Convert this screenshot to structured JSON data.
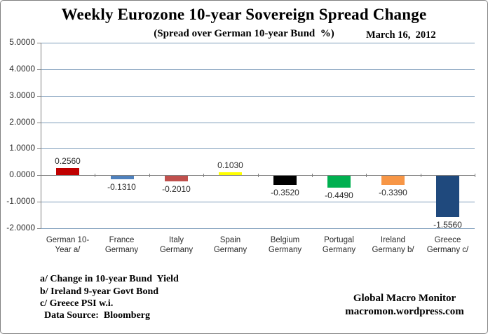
{
  "chart_data": {
    "type": "bar",
    "title": "Weekly Eurozone 10-year Sovereign Spread Change",
    "subtitle": "(Spread over German 10-year Bund  %)",
    "date_annotation": "March 16,  2012",
    "categories": [
      "German 10-\nYear a/",
      "France\nGermany",
      "Italy\nGermany",
      "Spain\nGermany",
      "Belgium\nGermany",
      "Portugal\nGermany",
      "Ireland\nGermany b/",
      "Greece\nGermany c/"
    ],
    "values": [
      0.256,
      -0.131,
      -0.201,
      0.103,
      -0.352,
      -0.449,
      -0.339,
      -1.556
    ],
    "value_labels": [
      "0.2560",
      "-0.1310",
      "-0.2010",
      "0.1030",
      "-0.3520",
      "-0.4490",
      "-0.3390",
      "-1.5560"
    ],
    "bar_colors": [
      "#c00000",
      "#4f81bd",
      "#c0504d",
      "#ffff00",
      "#000000",
      "#00b050",
      "#f79646",
      "#1f497d"
    ],
    "ylim": [
      -2,
      5
    ],
    "yticks": [
      5,
      4,
      3,
      2,
      1,
      0,
      -1,
      -2
    ],
    "ytick_decimals": 4,
    "xlabel": "",
    "ylabel": "",
    "grid": true,
    "gridline_color": "#7d9cba",
    "axis_color": "#808080",
    "legend": "none"
  },
  "footnotes": {
    "lines": [
      "a/ Change in 10-year Bund  Yield",
      "b/ Ireland 9-year Govt Bond",
      "c/ Greece PSI w.i."
    ],
    "data_source": "Data Source:  Bloomberg"
  },
  "branding": {
    "name": "Global Macro Monitor",
    "url": "macromon.wordpress.com"
  }
}
